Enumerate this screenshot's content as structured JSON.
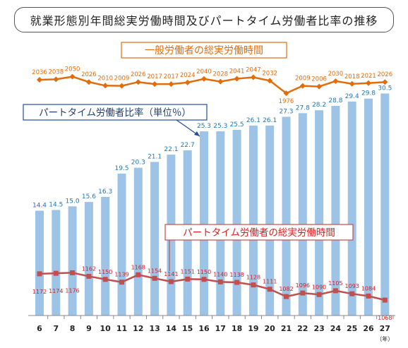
{
  "title": "就業形態別年間総実労働時間及びパートタイム労働者比率の推移",
  "chart_data": {
    "type": "bar",
    "categories": [
      "6",
      "7",
      "8",
      "9",
      "10",
      "11",
      "12",
      "13",
      "14",
      "15",
      "16",
      "17",
      "18",
      "19",
      "20",
      "21",
      "22",
      "23",
      "24",
      "25",
      "26",
      "27"
    ],
    "x_unit": "（年）",
    "ratio_ylim": [
      0,
      32
    ],
    "hours_ylim": [
      1000,
      2100
    ],
    "series": [
      {
        "name": "パートタイム労働者比率（単位％）",
        "kind": "bar",
        "color": "#9dc3e6",
        "label_color": "#1f77b4",
        "values": [
          14.4,
          14.5,
          15.0,
          15.6,
          16.3,
          19.5,
          20.3,
          21.1,
          22.1,
          22.7,
          25.3,
          25.3,
          25.5,
          26.1,
          26.1,
          27.3,
          27.8,
          28.2,
          28.8,
          29.4,
          29.8,
          30.5
        ]
      },
      {
        "name": "一般労働者の総実労働時間",
        "kind": "line",
        "color": "#e36c0a",
        "label_color": "#e36c0a",
        "values": [
          2036,
          2038,
          2050,
          2026,
          2010,
          2009,
          2026,
          2017,
          2017,
          2024,
          2040,
          2028,
          2041,
          2047,
          2032,
          1976,
          2009,
          2006,
          2030,
          2018,
          2021,
          2026
        ]
      },
      {
        "name": "パートタイム労働者の総実労働時間",
        "kind": "line",
        "color": "#c0504d",
        "label_color": "#d42020",
        "values": [
          1172,
          1174,
          1176,
          1162,
          1150,
          1139,
          1168,
          1154,
          1141,
          1151,
          1150,
          1140,
          1138,
          1128,
          1111,
          1082,
          1096,
          1090,
          1105,
          1093,
          1084,
          1068
        ]
      }
    ]
  }
}
